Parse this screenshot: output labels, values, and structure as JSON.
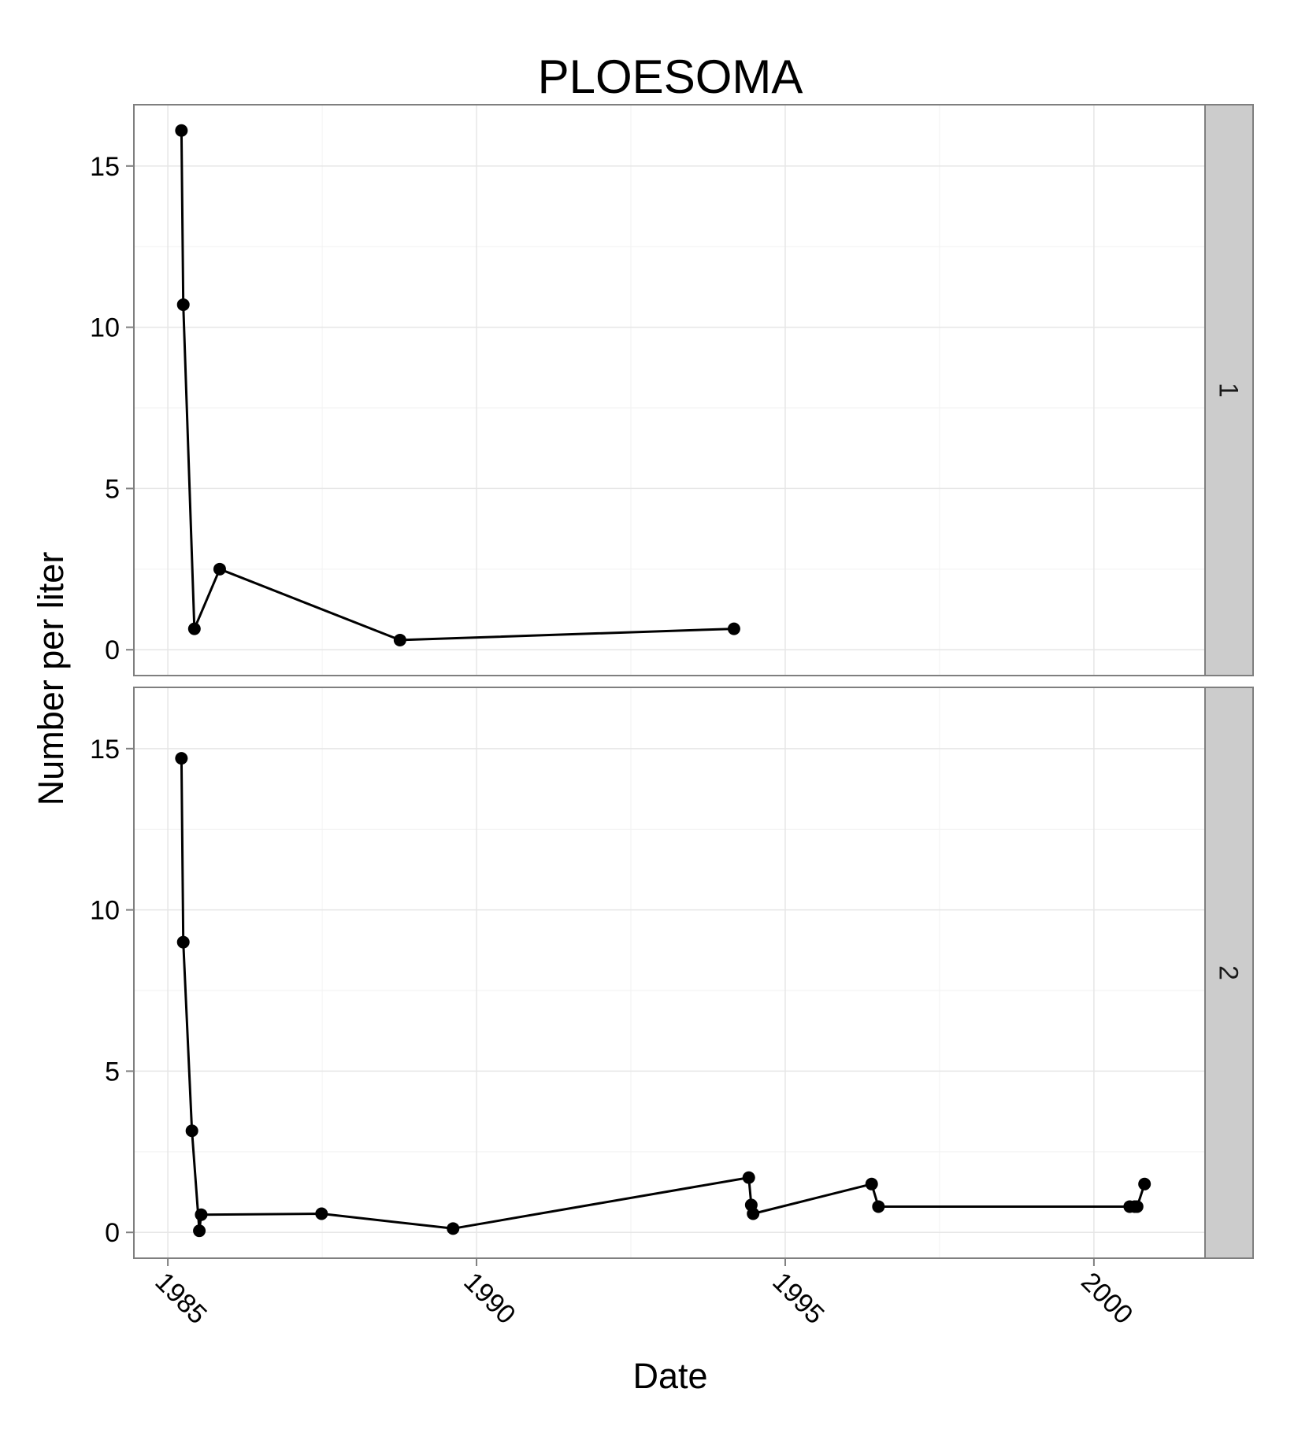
{
  "chart_data": {
    "type": "line",
    "title": "PLOESOMA",
    "xlabel": "Date",
    "ylabel": "Number per liter",
    "xlim": [
      1984.45,
      2001.8
    ],
    "ylim": [
      -0.8,
      16.9
    ],
    "x_ticks": [
      1985,
      1990,
      1995,
      2000
    ],
    "x_tick_labels": [
      "1985",
      "1990",
      "1995",
      "2000"
    ],
    "y_ticks": [
      0,
      5,
      10,
      15
    ],
    "y_tick_labels": [
      "0",
      "5",
      "10",
      "15"
    ],
    "grid": true,
    "markers": true,
    "facets": [
      {
        "label": "1",
        "points": [
          {
            "x": 1985.22,
            "y": 16.1
          },
          {
            "x": 1985.25,
            "y": 10.7
          },
          {
            "x": 1985.43,
            "y": 0.65
          },
          {
            "x": 1985.84,
            "y": 2.5
          },
          {
            "x": 1988.76,
            "y": 0.3
          },
          {
            "x": 1994.17,
            "y": 0.65
          }
        ]
      },
      {
        "label": "2",
        "points": [
          {
            "x": 1985.22,
            "y": 14.7
          },
          {
            "x": 1985.25,
            "y": 9.0
          },
          {
            "x": 1985.39,
            "y": 3.15
          },
          {
            "x": 1985.51,
            "y": 0.05
          },
          {
            "x": 1985.54,
            "y": 0.55
          },
          {
            "x": 1987.49,
            "y": 0.58
          },
          {
            "x": 1989.62,
            "y": 0.12
          },
          {
            "x": 1994.41,
            "y": 1.7
          },
          {
            "x": 1994.45,
            "y": 0.85
          },
          {
            "x": 1994.48,
            "y": 0.58
          },
          {
            "x": 1996.4,
            "y": 1.5
          },
          {
            "x": 1996.51,
            "y": 0.8
          },
          {
            "x": 2000.58,
            "y": 0.8
          },
          {
            "x": 2000.66,
            "y": 0.8
          },
          {
            "x": 2000.7,
            "y": 0.8
          },
          {
            "x": 2000.82,
            "y": 1.5
          }
        ]
      }
    ]
  }
}
